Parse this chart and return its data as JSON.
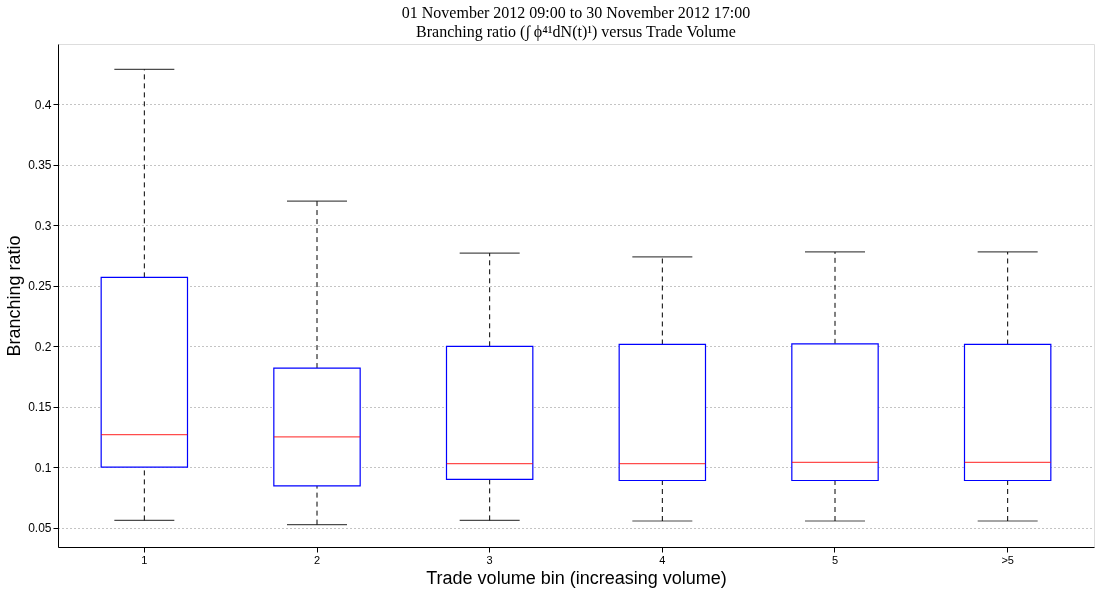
{
  "chart_data": {
    "type": "box",
    "title": "01 November 2012 09:00 to 30 November 2012 17:00",
    "subtitle": "Branching ratio (∫ ϕ⁴¹dN(t)¹) versus Trade Volume",
    "xlabel": "Trade volume bin (increasing volume)",
    "ylabel": "Branching ratio",
    "categories": [
      "1",
      "2",
      "3",
      "4",
      "5",
      ">5"
    ],
    "boxes": [
      {
        "low": 0.056,
        "q1": 0.1,
        "median": 0.127,
        "q3": 0.257,
        "high": 0.429
      },
      {
        "low": 0.0525,
        "q1": 0.0845,
        "median": 0.125,
        "q3": 0.182,
        "high": 0.32
      },
      {
        "low": 0.056,
        "q1": 0.09,
        "median": 0.103,
        "q3": 0.2,
        "high": 0.277
      },
      {
        "low": 0.0555,
        "q1": 0.089,
        "median": 0.103,
        "q3": 0.2015,
        "high": 0.274
      },
      {
        "low": 0.0555,
        "q1": 0.089,
        "median": 0.104,
        "q3": 0.202,
        "high": 0.278
      },
      {
        "low": 0.0555,
        "q1": 0.089,
        "median": 0.104,
        "q3": 0.2015,
        "high": 0.278
      }
    ],
    "ylim": [
      0.034,
      0.45
    ],
    "yticks": [
      0.05,
      0.1,
      0.15,
      0.2,
      0.25,
      0.3,
      0.35,
      0.4
    ],
    "grid": "y"
  }
}
